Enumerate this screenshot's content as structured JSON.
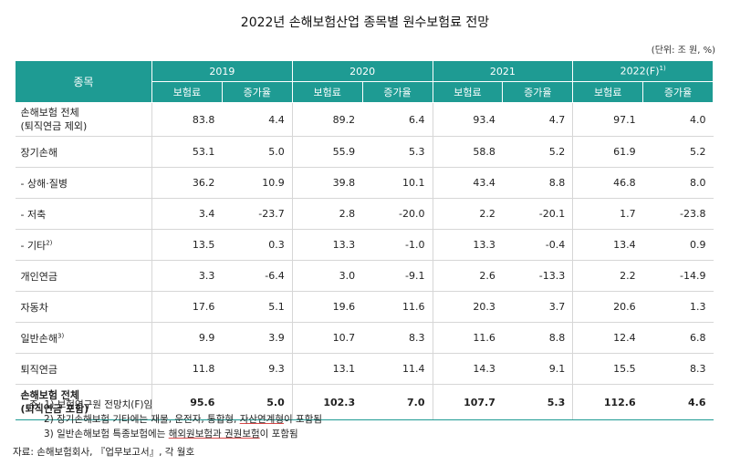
{
  "title": "2022년 손해보험산업 종목별 원수보험료 전망",
  "unit": "(단위: 조 원, %)",
  "header": {
    "item": "종목",
    "years": [
      "2019",
      "2020",
      "2021",
      "2022(F)"
    ],
    "year4_note": "1)",
    "sub_premium": "보험료",
    "sub_growth": "증가율"
  },
  "rows": [
    {
      "label": "손해보험 전체",
      "label2": "(퇴직연금 제외)",
      "note": "",
      "values": [
        "83.8",
        "4.4",
        "89.2",
        "6.4",
        "93.4",
        "4.7",
        "97.1",
        "4.0"
      ]
    },
    {
      "label": "장기손해",
      "label2": "",
      "note": "",
      "values": [
        "53.1",
        "5.0",
        "55.9",
        "5.3",
        "58.8",
        "5.2",
        "61.9",
        "5.2"
      ]
    },
    {
      "label": " - 상해·질병",
      "label2": "",
      "note": "",
      "values": [
        "36.2",
        "10.9",
        "39.8",
        "10.1",
        "43.4",
        "8.8",
        "46.8",
        "8.0"
      ]
    },
    {
      "label": " - 저축",
      "label2": "",
      "note": "",
      "values": [
        "3.4",
        "-23.7",
        "2.8",
        "-20.0",
        "2.2",
        "-20.1",
        "1.7",
        "-23.8"
      ]
    },
    {
      "label": " - 기타",
      "label2": "",
      "note": "2)",
      "values": [
        "13.5",
        "0.3",
        "13.3",
        "-1.0",
        "13.3",
        "-0.4",
        "13.4",
        "0.9"
      ]
    },
    {
      "label": "개인연금",
      "label2": "",
      "note": "",
      "values": [
        "3.3",
        "-6.4",
        "3.0",
        "-9.1",
        "2.6",
        "-13.3",
        "2.2",
        "-14.9"
      ]
    },
    {
      "label": "자동차",
      "label2": "",
      "note": "",
      "values": [
        "17.6",
        "5.1",
        "19.6",
        "11.6",
        "20.3",
        "3.7",
        "20.6",
        "1.3"
      ]
    },
    {
      "label": "일반손해",
      "label2": "",
      "note": "3)",
      "values": [
        "9.9",
        "3.9",
        "10.7",
        "8.3",
        "11.6",
        "8.8",
        "12.4",
        "6.8"
      ]
    },
    {
      "label": "퇴직연금",
      "label2": "",
      "note": "",
      "values": [
        "11.8",
        "9.3",
        "13.1",
        "11.4",
        "14.3",
        "9.1",
        "15.5",
        "8.3"
      ]
    },
    {
      "label": "손해보험 전체",
      "label2": "(퇴직연금 포함)",
      "note": "",
      "values": [
        "95.6",
        "5.0",
        "102.3",
        "7.0",
        "107.7",
        "5.3",
        "112.6",
        "4.6"
      ]
    }
  ],
  "notes": {
    "n1": "주: 1) 보험연구원 전망치(F)임",
    "n2a": "2) 장기손해보험 기타에는 재물, 운전자, 통합형, ",
    "n2b": "자산연계형",
    "n2c": "이 포함됨",
    "n3a": "3) 일반손해보험 특종보험에는 ",
    "n3b": "해외원보험과 권원보험",
    "n3c": "이 포함됨"
  },
  "source": "자료: 손해보험회사, 『업무보고서』, 각 월호"
}
